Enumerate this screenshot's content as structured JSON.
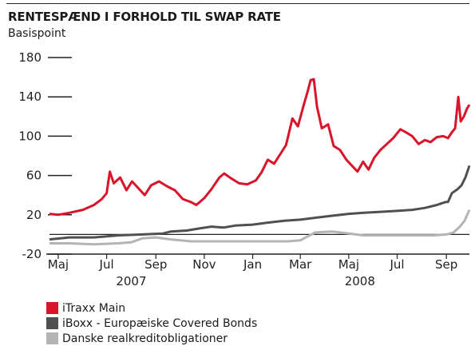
{
  "title": "RENTESPÆND I FORHOLD TIL SWAP RATE",
  "subtitle": "Basispoint",
  "colors": {
    "itraxx": "#d9142b",
    "iboxx": "#505050",
    "danske": "#b4b4b4",
    "axis": "#222222"
  },
  "chart_data": {
    "type": "line",
    "title": "RENTESPÆND I FORHOLD TIL SWAP RATE",
    "ylabel": "Basispoint",
    "ylim": [
      -20,
      180
    ],
    "yticks": [
      -20,
      20,
      60,
      100,
      140,
      180
    ],
    "xlim": [
      "2007-04-20",
      "2008-09-30"
    ],
    "xticks": [
      {
        "date": "2007-05-01",
        "label": "Maj"
      },
      {
        "date": "2007-07-01",
        "label": "Jul"
      },
      {
        "date": "2007-09-01",
        "label": "Sep"
      },
      {
        "date": "2007-11-01",
        "label": "Nov"
      },
      {
        "date": "2008-01-01",
        "label": "Jan"
      },
      {
        "date": "2008-03-01",
        "label": "Mar"
      },
      {
        "date": "2008-05-01",
        "label": "Maj"
      },
      {
        "date": "2008-07-01",
        "label": "Jul"
      },
      {
        "date": "2008-09-01",
        "label": "Sep"
      }
    ],
    "year_labels": [
      {
        "date": "2007-08-01",
        "label": "2007"
      },
      {
        "date": "2008-05-15",
        "label": "2008"
      }
    ],
    "legend_position": "bottom-left",
    "grid": false,
    "series": [
      {
        "name": "iTraxx Main",
        "color": "#d9142b",
        "points": [
          [
            "2007-04-20",
            21
          ],
          [
            "2007-05-01",
            20
          ],
          [
            "2007-05-15",
            22
          ],
          [
            "2007-06-01",
            25
          ],
          [
            "2007-06-15",
            30
          ],
          [
            "2007-06-25",
            36
          ],
          [
            "2007-07-01",
            42
          ],
          [
            "2007-07-05",
            64
          ],
          [
            "2007-07-10",
            52
          ],
          [
            "2007-07-18",
            58
          ],
          [
            "2007-07-26",
            45
          ],
          [
            "2007-08-02",
            54
          ],
          [
            "2007-08-10",
            47
          ],
          [
            "2007-08-18",
            40
          ],
          [
            "2007-08-26",
            50
          ],
          [
            "2007-09-05",
            54
          ],
          [
            "2007-09-15",
            49
          ],
          [
            "2007-09-25",
            45
          ],
          [
            "2007-10-05",
            36
          ],
          [
            "2007-10-15",
            33
          ],
          [
            "2007-10-22",
            30
          ],
          [
            "2007-11-01",
            37
          ],
          [
            "2007-11-10",
            46
          ],
          [
            "2007-11-20",
            58
          ],
          [
            "2007-11-26",
            62
          ],
          [
            "2007-12-05",
            57
          ],
          [
            "2007-12-15",
            52
          ],
          [
            "2007-12-25",
            51
          ],
          [
            "2008-01-05",
            55
          ],
          [
            "2008-01-12",
            63
          ],
          [
            "2008-01-20",
            76
          ],
          [
            "2008-01-28",
            72
          ],
          [
            "2008-02-05",
            82
          ],
          [
            "2008-02-12",
            91
          ],
          [
            "2008-02-20",
            118
          ],
          [
            "2008-02-27",
            110
          ],
          [
            "2008-03-05",
            131
          ],
          [
            "2008-03-10",
            145
          ],
          [
            "2008-03-14",
            157
          ],
          [
            "2008-03-18",
            158
          ],
          [
            "2008-03-22",
            130
          ],
          [
            "2008-03-28",
            108
          ],
          [
            "2008-04-05",
            112
          ],
          [
            "2008-04-12",
            90
          ],
          [
            "2008-04-20",
            86
          ],
          [
            "2008-04-28",
            76
          ],
          [
            "2008-05-05",
            70
          ],
          [
            "2008-05-12",
            64
          ],
          [
            "2008-05-19",
            74
          ],
          [
            "2008-05-26",
            66
          ],
          [
            "2008-06-02",
            78
          ],
          [
            "2008-06-10",
            86
          ],
          [
            "2008-06-18",
            92
          ],
          [
            "2008-06-26",
            98
          ],
          [
            "2008-07-05",
            107
          ],
          [
            "2008-07-12",
            104
          ],
          [
            "2008-07-20",
            100
          ],
          [
            "2008-07-28",
            92
          ],
          [
            "2008-08-05",
            96
          ],
          [
            "2008-08-12",
            94
          ],
          [
            "2008-08-20",
            99
          ],
          [
            "2008-08-28",
            100
          ],
          [
            "2008-09-03",
            98
          ],
          [
            "2008-09-08",
            104
          ],
          [
            "2008-09-12",
            108
          ],
          [
            "2008-09-16",
            140
          ],
          [
            "2008-09-19",
            115
          ],
          [
            "2008-09-23",
            120
          ],
          [
            "2008-09-27",
            128
          ],
          [
            "2008-09-30",
            132
          ]
        ]
      },
      {
        "name": "iBoxx - Europæiske Covered Bonds",
        "color": "#505050",
        "points": [
          [
            "2007-04-20",
            -5
          ],
          [
            "2007-05-15",
            -3
          ],
          [
            "2007-06-15",
            -3
          ],
          [
            "2007-07-15",
            -1
          ],
          [
            "2007-08-15",
            0
          ],
          [
            "2007-09-10",
            1
          ],
          [
            "2007-09-20",
            3
          ],
          [
            "2007-10-10",
            4
          ],
          [
            "2007-10-25",
            6
          ],
          [
            "2007-11-10",
            8
          ],
          [
            "2007-11-25",
            7
          ],
          [
            "2007-12-10",
            9
          ],
          [
            "2008-01-01",
            10
          ],
          [
            "2008-01-20",
            12
          ],
          [
            "2008-02-10",
            14
          ],
          [
            "2008-03-01",
            15
          ],
          [
            "2008-03-20",
            17
          ],
          [
            "2008-04-10",
            19
          ],
          [
            "2008-05-01",
            21
          ],
          [
            "2008-05-20",
            22
          ],
          [
            "2008-06-10",
            23
          ],
          [
            "2008-07-01",
            24
          ],
          [
            "2008-07-20",
            25
          ],
          [
            "2008-08-05",
            27
          ],
          [
            "2008-08-20",
            30
          ],
          [
            "2008-08-31",
            33
          ],
          [
            "2008-09-03",
            33
          ],
          [
            "2008-09-08",
            42
          ],
          [
            "2008-09-15",
            46
          ],
          [
            "2008-09-20",
            50
          ],
          [
            "2008-09-25",
            58
          ],
          [
            "2008-09-30",
            70
          ]
        ]
      },
      {
        "name": "Danske realkreditobligationer",
        "color": "#b4b4b4",
        "points": [
          [
            "2007-04-20",
            -9
          ],
          [
            "2007-05-15",
            -9
          ],
          [
            "2007-06-15",
            -10
          ],
          [
            "2007-07-15",
            -9
          ],
          [
            "2007-08-01",
            -8
          ],
          [
            "2007-08-15",
            -4
          ],
          [
            "2007-09-01",
            -3
          ],
          [
            "2007-09-20",
            -5
          ],
          [
            "2007-10-15",
            -7
          ],
          [
            "2007-11-15",
            -7
          ],
          [
            "2007-12-15",
            -7
          ],
          [
            "2008-01-15",
            -7
          ],
          [
            "2008-02-15",
            -7
          ],
          [
            "2008-03-01",
            -6
          ],
          [
            "2008-03-10",
            -2
          ],
          [
            "2008-03-20",
            2
          ],
          [
            "2008-04-10",
            3
          ],
          [
            "2008-05-01",
            1
          ],
          [
            "2008-05-20",
            -1
          ],
          [
            "2008-06-15",
            -1
          ],
          [
            "2008-07-15",
            -1
          ],
          [
            "2008-08-15",
            -1
          ],
          [
            "2008-09-01",
            0
          ],
          [
            "2008-09-10",
            2
          ],
          [
            "2008-09-18",
            8
          ],
          [
            "2008-09-24",
            14
          ],
          [
            "2008-09-30",
            25
          ]
        ]
      }
    ]
  }
}
